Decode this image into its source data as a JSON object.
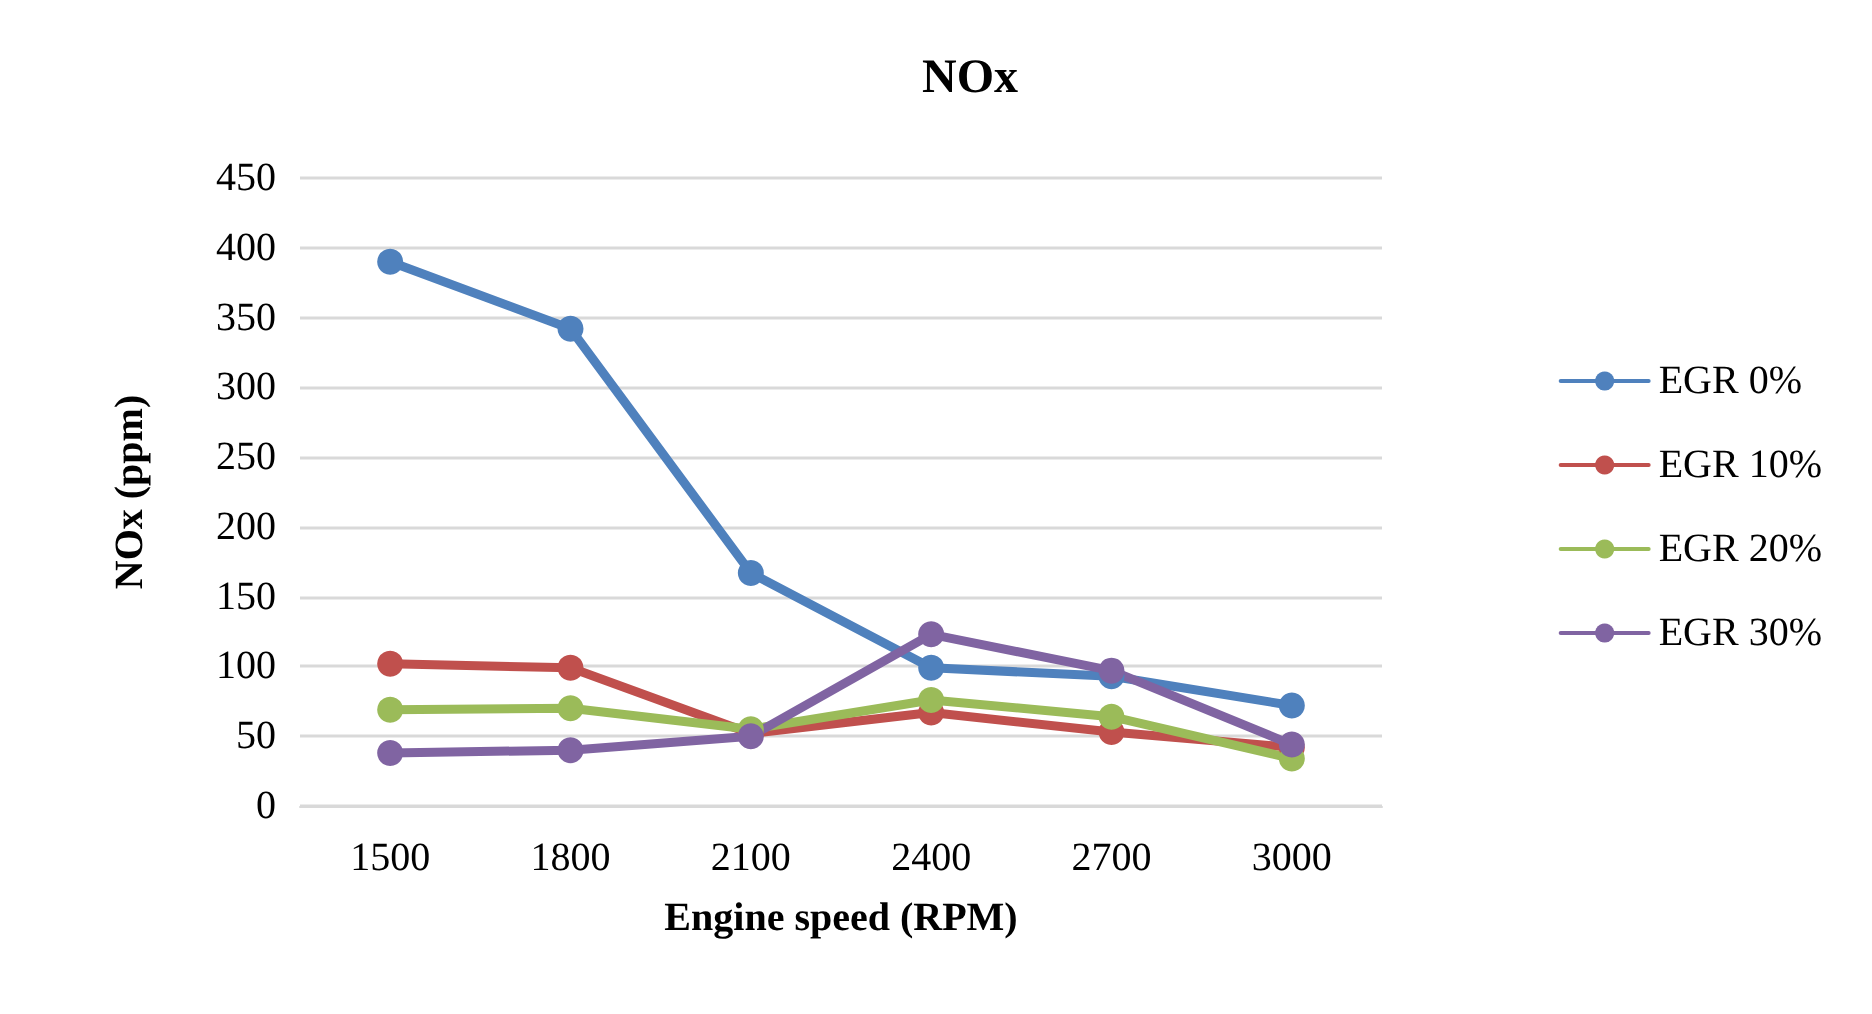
{
  "chart_data": {
    "type": "line",
    "title": "NOx",
    "xlabel": "Engine speed (RPM)",
    "ylabel": "NOx (ppm)",
    "categories": [
      "1500",
      "1800",
      "2100",
      "2400",
      "2700",
      "3000"
    ],
    "series": [
      {
        "name": "EGR 0%",
        "color": "#4f81bd",
        "values": [
          390,
          342,
          167,
          99,
          93,
          72
        ]
      },
      {
        "name": "EGR 10%",
        "color": "#c0504d",
        "values": [
          102,
          99,
          52,
          67,
          53,
          42
        ]
      },
      {
        "name": "EGR 20%",
        "color": "#9bbb59",
        "values": [
          69,
          70,
          55,
          76,
          64,
          34
        ]
      },
      {
        "name": "EGR 30%",
        "color": "#8064a2",
        "values": [
          38,
          40,
          50,
          123,
          97,
          44
        ]
      }
    ],
    "ylim": [
      0,
      450
    ],
    "yticks": [
      0,
      50,
      100,
      150,
      200,
      250,
      300,
      350,
      400,
      450
    ],
    "grid": "y",
    "legend": "right",
    "marker": "circle",
    "line_style": "solid"
  }
}
